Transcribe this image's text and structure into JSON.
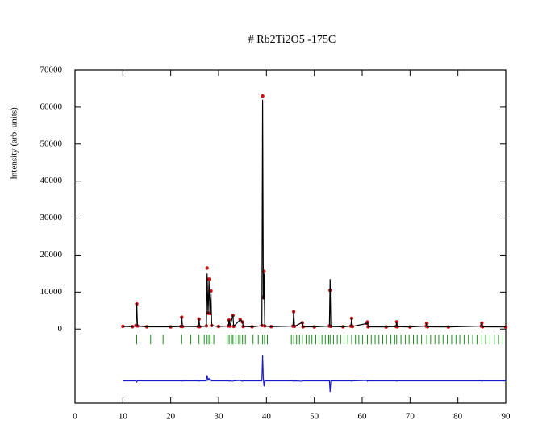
{
  "chart_data": {
    "type": "line",
    "title": "# Rb2Ti2O5 -175C",
    "y_label": "Intensity (arb. units)",
    "xlim": [
      0,
      90
    ],
    "xticks": [
      0,
      10,
      20,
      30,
      40,
      50,
      60,
      70,
      80,
      90
    ],
    "ylim": [
      -20000,
      70000
    ],
    "yticks": [
      0,
      10000,
      20000,
      30000,
      40000,
      50000,
      60000,
      70000
    ],
    "x": [
      10,
      12,
      12.75,
      12.9,
      13.05,
      15,
      20,
      22.15,
      22.3,
      22.45,
      25.75,
      25.9,
      26.05,
      27.45,
      27.6,
      27.8,
      28.0,
      28.2,
      28.4,
      28.55,
      30,
      32.05,
      32.2,
      32.4,
      33.0,
      33.15,
      34.5,
      35.0,
      35.15,
      37,
      39.05,
      39.2,
      39.35,
      39.5,
      39.65,
      41,
      45.55,
      45.7,
      45.85,
      47.5,
      47.65,
      50,
      53.15,
      53.3,
      53.45,
      56,
      57.65,
      57.8,
      57.95,
      61.0,
      61.1,
      61.25,
      65,
      67.1,
      67.2,
      67.35,
      70,
      73.4,
      73.5,
      73.65,
      78,
      84.9,
      85.0,
      85.15,
      90
    ],
    "series": [
      {
        "mode": "markers",
        "color": "#cc1111",
        "values": [
          720,
          640,
          950,
          6800,
          820,
          610,
          590,
          720,
          3200,
          690,
          660,
          2700,
          640,
          850,
          16500,
          4300,
          13500,
          4200,
          10300,
          950,
          690,
          820,
          2400,
          790,
          3700,
          720,
          2600,
          1900,
          690,
          610,
          950,
          63000,
          8600,
          15600,
          820,
          640,
          790,
          4700,
          720,
          1700,
          610,
          590,
          820,
          10500,
          720,
          610,
          790,
          2900,
          700,
          1550,
          1900,
          610,
          560,
          690,
          1950,
          610,
          560,
          790,
          1550,
          610,
          560,
          790,
          1600,
          610,
          550
        ]
      },
      {
        "mode": "line",
        "color": "#000000",
        "values": [
          700,
          650,
          900,
          7000,
          800,
          600,
          600,
          700,
          3300,
          700,
          650,
          2800,
          650,
          800,
          15000,
          4000,
          13000,
          4000,
          10000,
          900,
          700,
          800,
          2500,
          800,
          3800,
          700,
          2500,
          2000,
          700,
          600,
          900,
          62000,
          8000,
          15000,
          800,
          650,
          800,
          4800,
          700,
          1800,
          600,
          600,
          800,
          13500,
          700,
          600,
          800,
          3000,
          700,
          1500,
          2000,
          600,
          550,
          700,
          2000,
          600,
          550,
          800,
          1600,
          600,
          550,
          800,
          1700,
          600,
          550
        ]
      },
      {
        "mode": "line",
        "color": "#1a1acc",
        "values": [
          -14000,
          -14000,
          -14000,
          -14300,
          -14000,
          -14000,
          -14000,
          -14000,
          -14100,
          -14000,
          -14000,
          -14100,
          -14000,
          -14000,
          -12500,
          -13800,
          -13400,
          -13900,
          -13700,
          -14000,
          -14000,
          -14000,
          -14100,
          -14000,
          -14100,
          -14000,
          -13900,
          -14100,
          -14000,
          -14000,
          -14000,
          -7000,
          -13400,
          -15500,
          -14000,
          -14000,
          -14000,
          -14100,
          -14000,
          -14100,
          -14000,
          -14000,
          -14000,
          -17000,
          -14000,
          -14000,
          -14000,
          -14100,
          -14000,
          -13900,
          -14100,
          -14000,
          -14000,
          -14000,
          -14100,
          -14000,
          -14000,
          -14000,
          -14000,
          -14000,
          -14000,
          -14000,
          -14100,
          -14000,
          -14000
        ]
      }
    ],
    "reflections": {
      "color": "#1a8c1a",
      "x": [
        12.9,
        15.8,
        18.4,
        22.3,
        24.2,
        25.9,
        27.0,
        27.6,
        28.0,
        28.4,
        29.0,
        31.8,
        32.2,
        32.7,
        33.0,
        33.6,
        34.2,
        34.5,
        35.0,
        35.6,
        37.2,
        38.3,
        39.2,
        39.6,
        40.2,
        45.2,
        45.7,
        46.3,
        46.9,
        47.5,
        48.3,
        48.9,
        49.5,
        50.3,
        51.0,
        51.6,
        52.3,
        53.0,
        53.3,
        54.0,
        54.8,
        55.5,
        56.2,
        57.0,
        57.8,
        58.6,
        59.3,
        60.1,
        61.1,
        61.9,
        62.7,
        63.5,
        64.3,
        65.1,
        66.0,
        66.8,
        67.2,
        68.1,
        69.0,
        69.8,
        70.7,
        71.5,
        72.4,
        73.5,
        74.3,
        75.2,
        76.0,
        76.9,
        77.8,
        78.7,
        79.6,
        80.4,
        81.3,
        82.2,
        83.1,
        84.0,
        85.0,
        85.8,
        86.7,
        87.6,
        88.5,
        89.4
      ]
    }
  }
}
